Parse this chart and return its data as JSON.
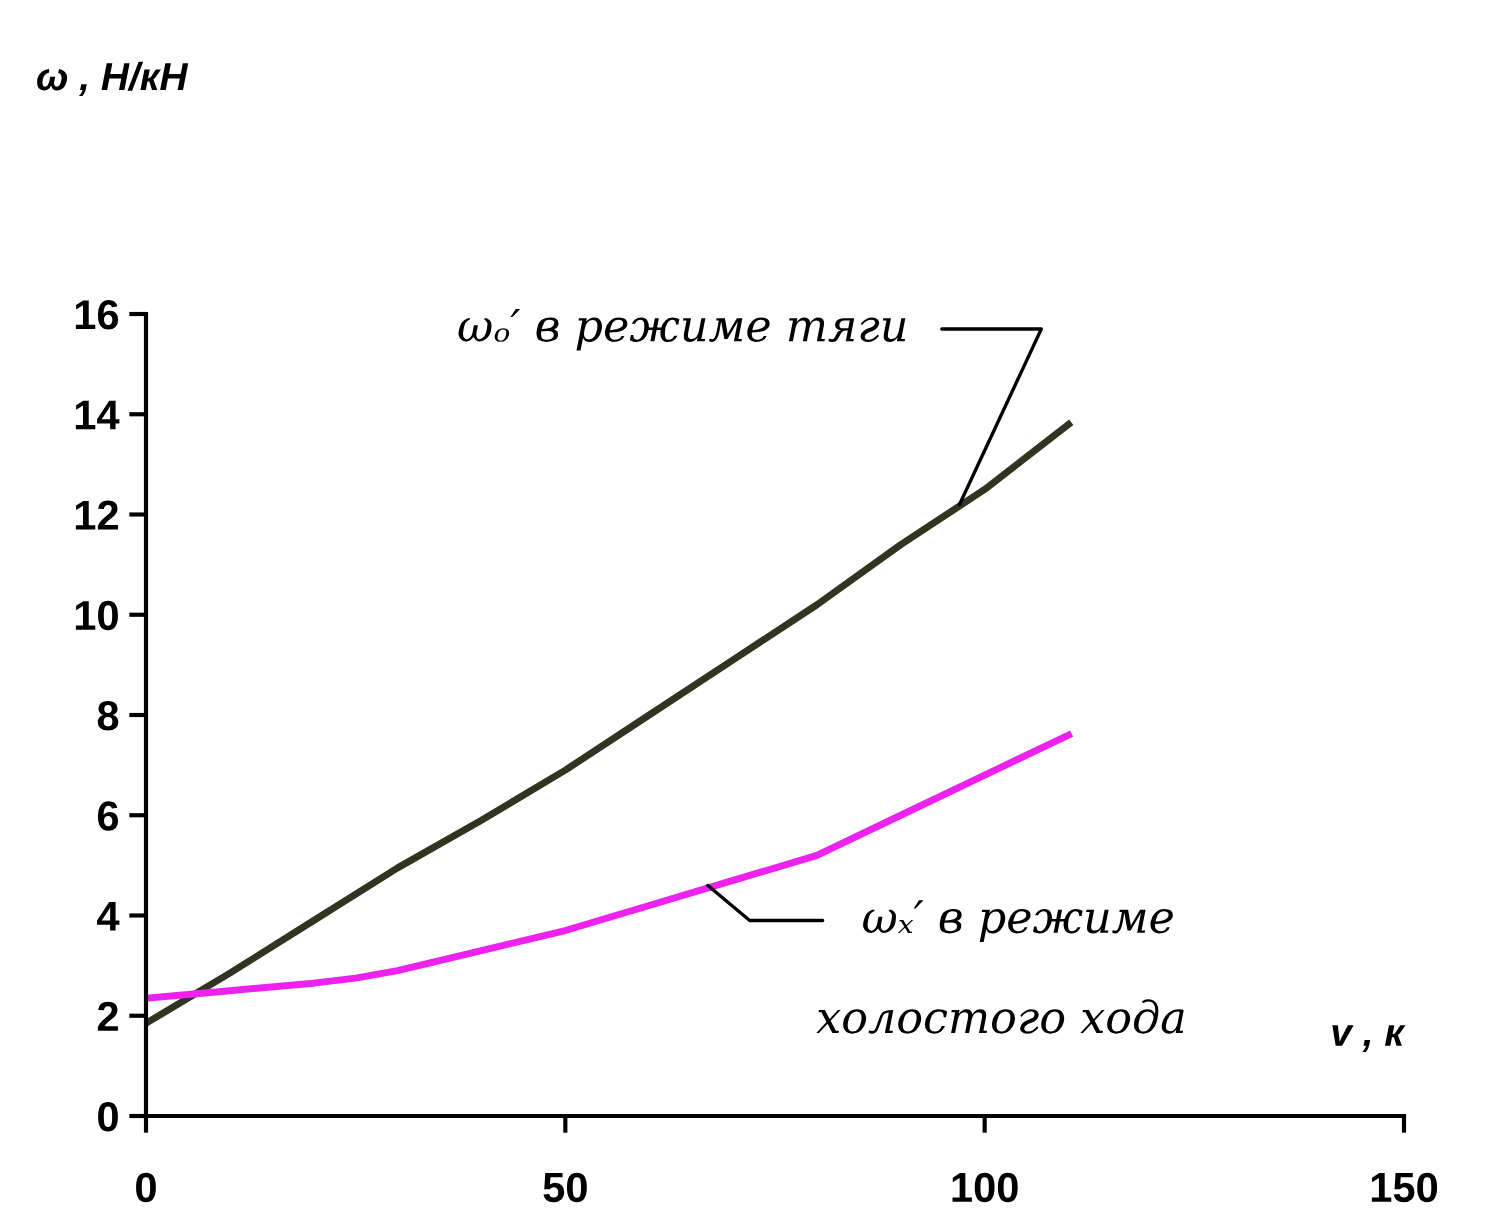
{
  "chart_data": {
    "type": "line",
    "xlabel": "v , к",
    "xlim": [
      0,
      150
    ],
    "xticks": [
      0,
      50,
      100,
      150
    ],
    "ylim": [
      0,
      16
    ],
    "yticks": [
      0,
      2,
      4,
      6,
      8,
      10,
      12,
      14,
      16
    ],
    "grid": false,
    "legend": false,
    "marker": "none",
    "line_style": "solid",
    "series": [
      {
        "color": "#333322",
        "x": [
          0,
          10,
          20,
          30,
          40,
          50,
          60,
          70,
          80,
          90,
          100,
          110
        ],
        "values": [
          1.85,
          2.85,
          3.9,
          4.95,
          5.9,
          6.9,
          8.0,
          9.1,
          10.2,
          11.4,
          12.5,
          13.8
        ]
      },
      {
        "color": "#ee22ee",
        "x": [
          0,
          10,
          20,
          25,
          30,
          40,
          50,
          60,
          70,
          80,
          90,
          100,
          110
        ],
        "values": [
          2.35,
          2.5,
          2.65,
          2.75,
          2.9,
          3.3,
          3.7,
          4.2,
          4.7,
          5.2,
          6.0,
          6.8,
          7.6
        ]
      }
    ],
    "annotations": [
      "ω , Н/кН",
      {
        "text": "ωₒ′ в режиме тяги",
        "x": 97,
        "y": 12.2
      },
      {
        "text": "ωₓ′ в режиме",
        "x": 67,
        "y": 4.6
      },
      "холостого хода"
    ]
  }
}
